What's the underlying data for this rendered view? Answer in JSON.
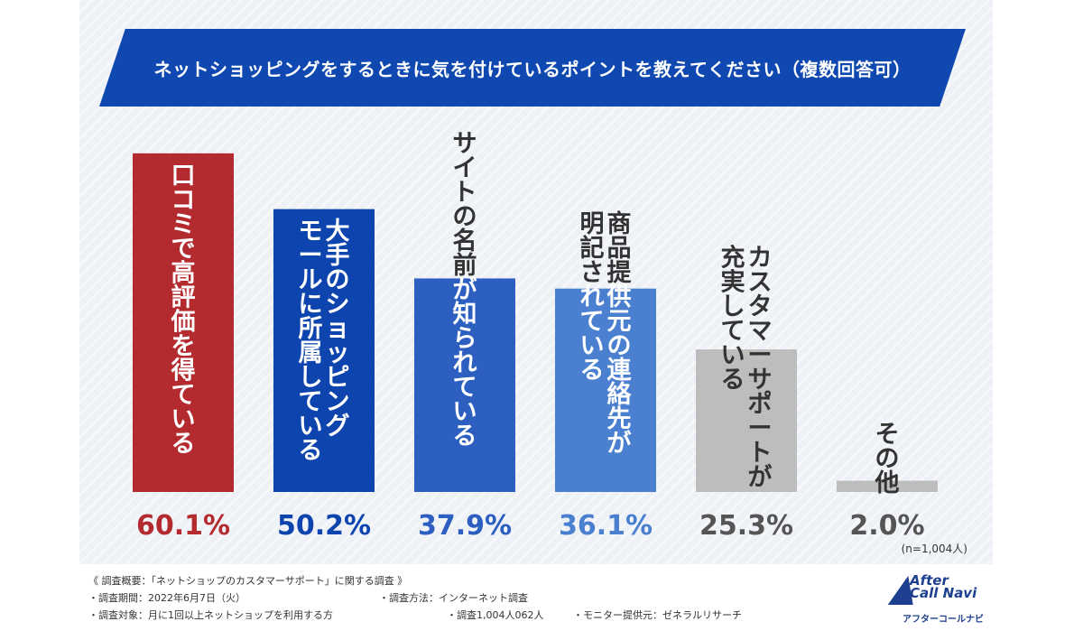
{
  "chart_data": {
    "type": "bar",
    "title": "ネットショッピングをするときに気を付けているポイントを教えてください（複数回答可）",
    "categories": [
      "口コミで高評価を得ている",
      "大手のショッピングモールに所属している",
      "サイトの名前が知られている",
      "商品提供元の連絡先が明記されている",
      "カスタマーサポートが充実している",
      "その他"
    ],
    "category_lines": [
      [
        "口コミで高評価を得ている"
      ],
      [
        "大手のショッピング",
        "モールに所属している"
      ],
      [
        "サイトの名前が知られている"
      ],
      [
        "商品提供元の連絡先が",
        "明記されている"
      ],
      [
        "カスタマーサポートが",
        "充実している"
      ],
      [
        "その他"
      ]
    ],
    "values": [
      60.1,
      50.2,
      37.9,
      36.1,
      25.3,
      2.0
    ],
    "value_labels": [
      "60.1%",
      "50.2%",
      "37.9%",
      "36.1%",
      "25.3%",
      "2.0%"
    ],
    "colors": [
      "#b32b2f",
      "#0d44ad",
      "#2c5fc0",
      "#4a80cf",
      "#bdbdbd",
      "#bdbdbd"
    ],
    "label_colors": [
      "#b32b2f",
      "#0d44ad",
      "#2c5fc0",
      "#4a80cf",
      "#555555",
      "#555555"
    ],
    "text_colors": [
      "#ffffff",
      "#ffffff",
      "#ffffff",
      "#ffffff",
      "#333333",
      "#333333"
    ],
    "ylim": [
      0,
      62
    ],
    "grid": false,
    "legend": "none",
    "note": "(n=1,004人)"
  },
  "colors": {
    "banner": "#0f48b0",
    "logo": "#1d3f8f"
  },
  "footer": {
    "summary": "《 調査概要：「ネットショップのカスタマーサポート」に関する調査 》",
    "period": "・調査期間：2022年6月7日（火）",
    "method": "・調査方法：インターネット調査",
    "target": "・調査対象：月に1回以上ネットショップを利用する方",
    "count": "・調査1,004人062人",
    "monitor": "・モニター提供元：ゼネラルリサーチ"
  },
  "logo": {
    "main_line1": "After",
    "main_line2": "Call Navi",
    "sub": "アフターコールナビ"
  }
}
